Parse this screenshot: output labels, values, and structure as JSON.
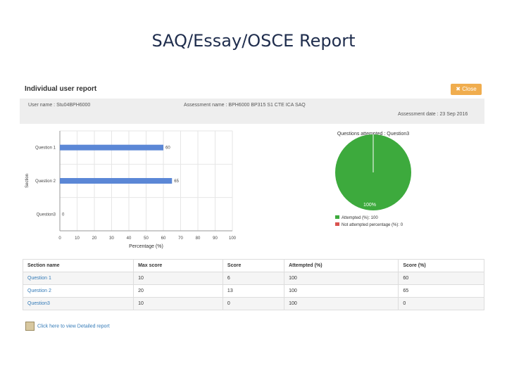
{
  "slide": {
    "title": "SAQ/Essay/OSCE Report"
  },
  "report": {
    "title": "Individual user report",
    "close_label": "✖ Close",
    "user_name": "User name : Stu04BPH6000",
    "assessment_name": "Assessment name : BPH6000 BP315 S1 CTE ICA SAQ",
    "assessment_date": "Assessment date : 23 Sep 2016"
  },
  "chart_data": [
    {
      "type": "bar",
      "orientation": "horizontal",
      "categories": [
        "Question 1",
        "Question 2",
        "Question3"
      ],
      "values": [
        60,
        65,
        0
      ],
      "data_labels": [
        "60",
        "65",
        "0"
      ],
      "xlabel": "Percentage (%)",
      "ylabel": "Section",
      "xlim": [
        0,
        100
      ],
      "xticks": [
        "0",
        "10",
        "20",
        "30",
        "40",
        "50",
        "60",
        "70",
        "80",
        "90",
        "100"
      ],
      "grid": true,
      "color": "#5b87d6"
    },
    {
      "type": "pie",
      "title": "Questions attempted : Question3",
      "slices": [
        {
          "label": "Attempted (%): 100",
          "value": 100,
          "color": "#3daa3d"
        },
        {
          "label": "Not attempted percentage (%): 0",
          "value": 0,
          "color": "#d9534f"
        }
      ],
      "data_label": "100%",
      "legend_position": "bottom"
    }
  ],
  "table": {
    "headers": [
      "Section name",
      "Max score",
      "Score",
      "Attempted (%)",
      "Score (%)"
    ],
    "rows": [
      [
        "Question 1",
        "10",
        "6",
        "100",
        "60"
      ],
      [
        "Question 2",
        "20",
        "13",
        "100",
        "65"
      ],
      [
        "Question3",
        "10",
        "0",
        "100",
        "0"
      ]
    ]
  },
  "detail_link": {
    "label": "Click here to view Detailed report",
    "icon": "report-icon"
  },
  "colors": {
    "close_button": "#f0ad4e",
    "link": "#337ab7",
    "info_bar": "#eeeeee"
  }
}
